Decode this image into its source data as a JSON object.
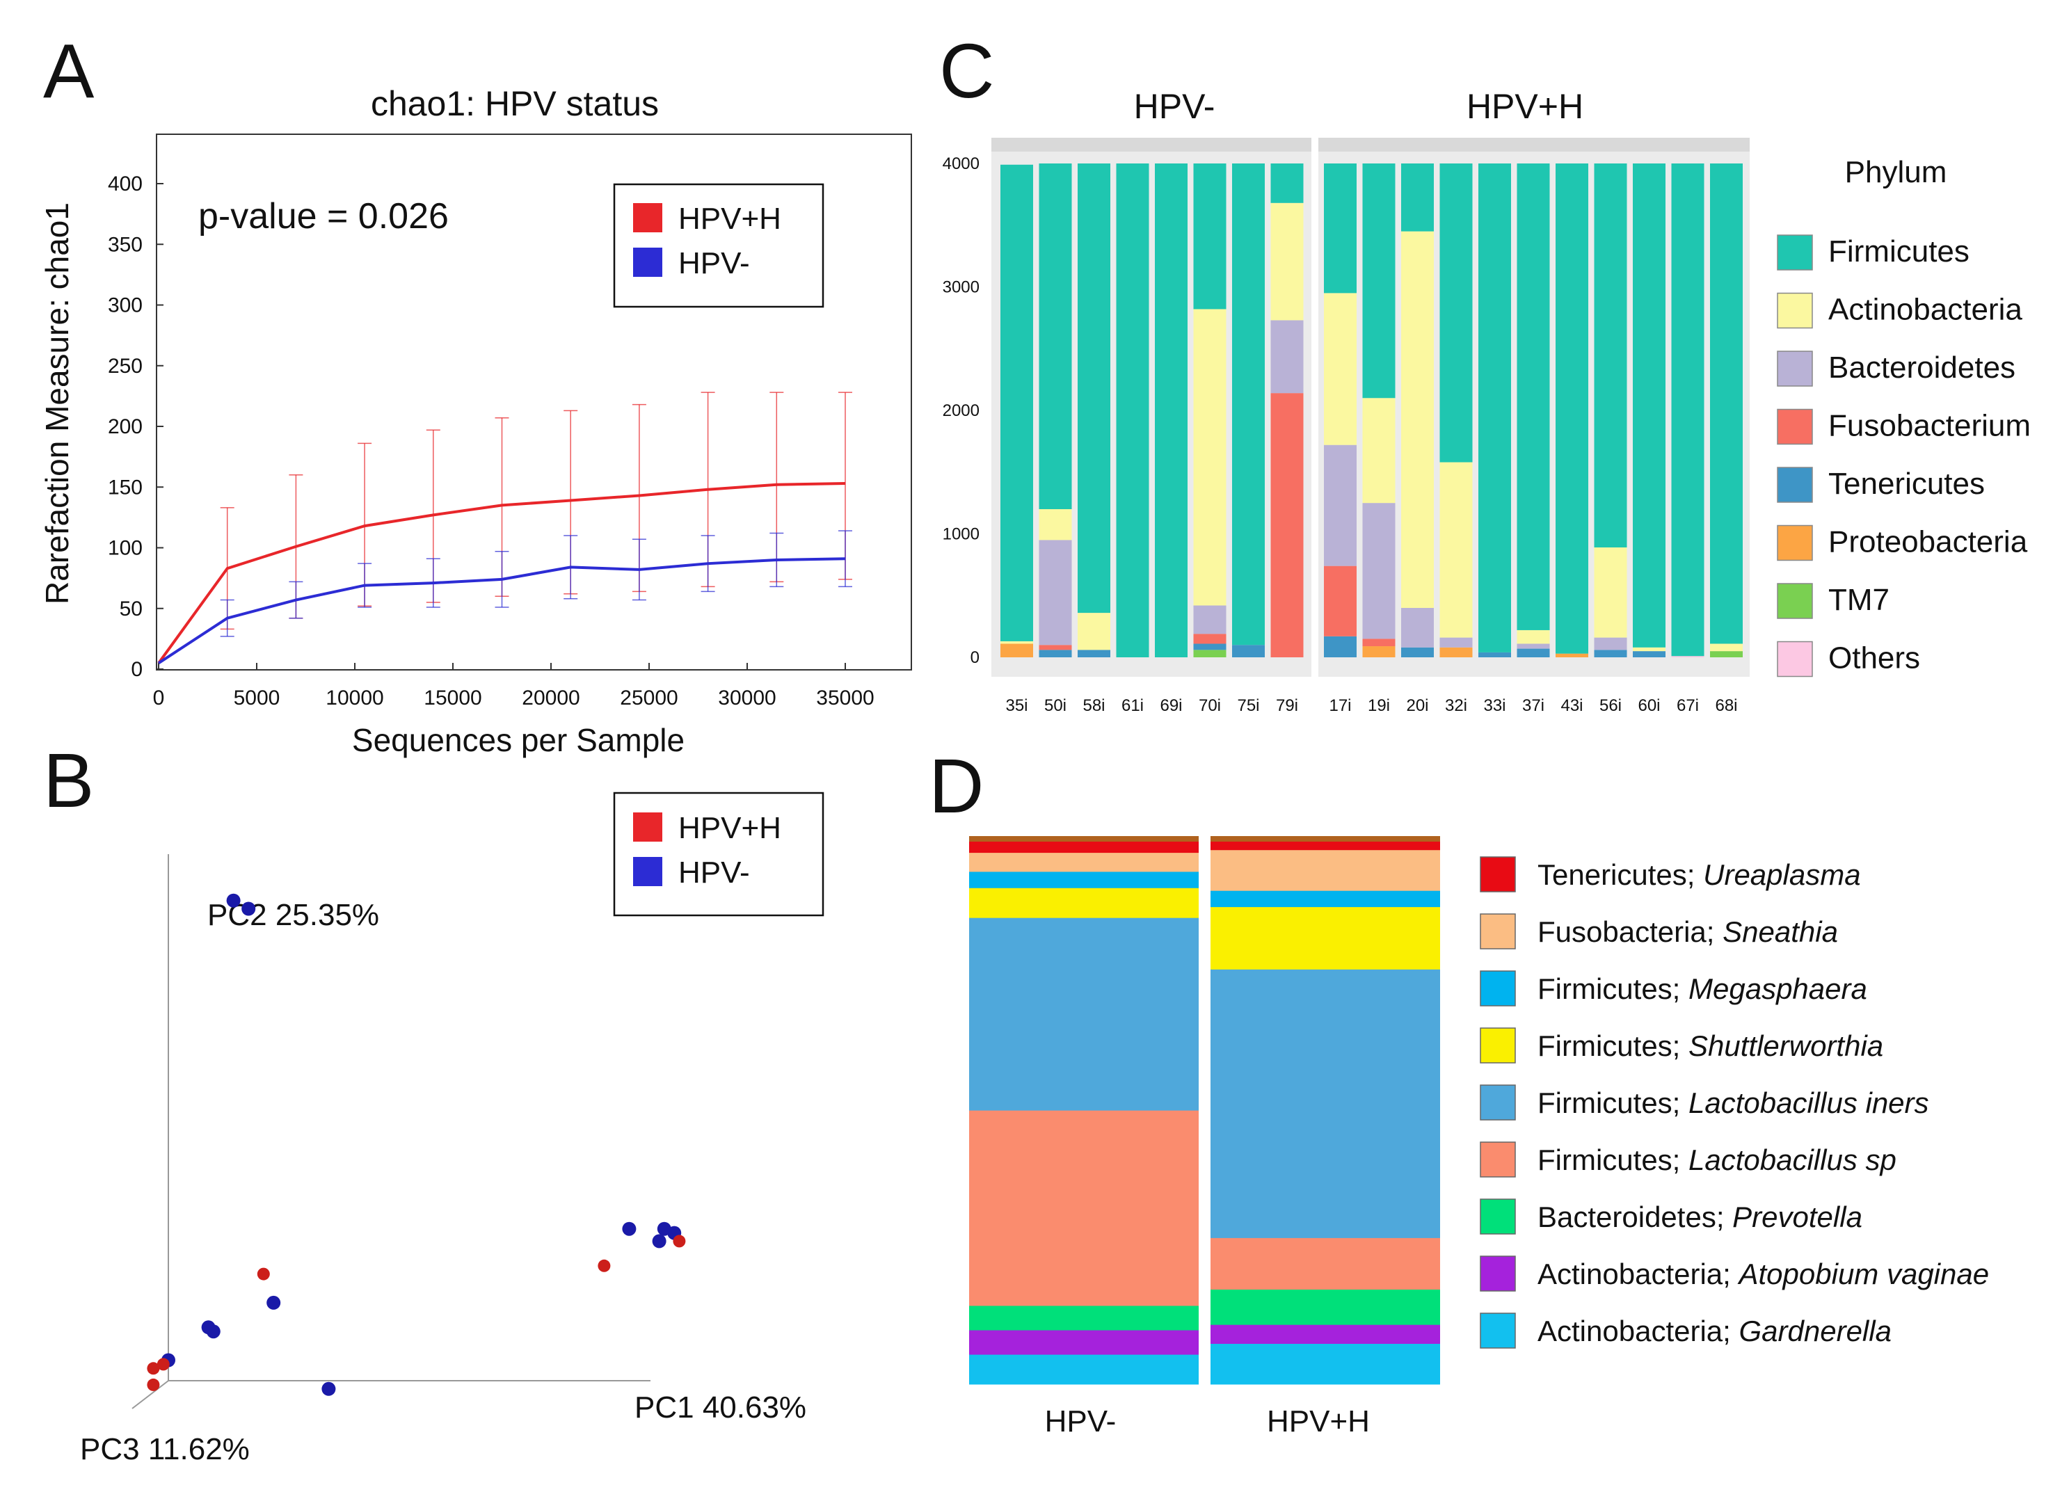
{
  "chart_data": [
    {
      "panel": "A",
      "type": "line",
      "title": "chao1: HPV status",
      "xlabel": "Sequences per Sample",
      "ylabel": "Rarefaction Measure: chao1",
      "annotation": "p-value = 0.026",
      "xlim": [
        0,
        38000
      ],
      "ylim": [
        0,
        420
      ],
      "xticks": [
        0,
        5000,
        10000,
        15000,
        20000,
        25000,
        30000,
        35000
      ],
      "yticks": [
        0,
        50,
        100,
        150,
        200,
        250,
        300,
        350,
        400
      ],
      "legend": [
        "HPV+H",
        "HPV-"
      ],
      "series": [
        {
          "name": "HPV+H",
          "color": "#e8262a",
          "x": [
            0,
            3500,
            7000,
            10500,
            14000,
            17500,
            21000,
            24500,
            28000,
            31500,
            35000
          ],
          "y": [
            5,
            83,
            101,
            118,
            127,
            135,
            139,
            143,
            148,
            152,
            153
          ],
          "err_upper": [
            5,
            133,
            160,
            186,
            197,
            207,
            213,
            218,
            228,
            228,
            228
          ],
          "err_lower": [
            5,
            33,
            42,
            52,
            55,
            60,
            62,
            64,
            68,
            72,
            74
          ]
        },
        {
          "name": "HPV-",
          "color": "#2c2cd4",
          "x": [
            0,
            3500,
            7000,
            10500,
            14000,
            17500,
            21000,
            24500,
            28000,
            31500,
            35000
          ],
          "y": [
            5,
            42,
            57,
            69,
            71,
            74,
            84,
            82,
            87,
            90,
            91
          ],
          "err_upper": [
            5,
            57,
            72,
            87,
            91,
            97,
            110,
            107,
            110,
            112,
            114
          ],
          "err_lower": [
            5,
            27,
            42,
            51,
            51,
            51,
            58,
            57,
            64,
            68,
            68
          ]
        }
      ]
    },
    {
      "panel": "B",
      "type": "scatter",
      "axis_labels": [
        "PC1 40.63%",
        "PC2 25.35%",
        "PC3 11.62%"
      ],
      "legend": [
        "HPV+H",
        "HPV-"
      ],
      "points": [
        {
          "group": "HPV-",
          "pc1": 0.13,
          "pc2": 1.17
        },
        {
          "group": "HPV-",
          "pc1": 0.16,
          "pc2": 1.15
        },
        {
          "group": "HPV-",
          "pc1": 0.92,
          "pc2": 0.37
        },
        {
          "group": "HPV-",
          "pc1": 0.99,
          "pc2": 0.37
        },
        {
          "group": "HPV-",
          "pc1": 1.01,
          "pc2": 0.36
        },
        {
          "group": "HPV-",
          "pc1": 0.98,
          "pc2": 0.34
        },
        {
          "group": "HPV-",
          "pc1": 0.21,
          "pc2": 0.19
        },
        {
          "group": "HPV-",
          "pc1": 0.08,
          "pc2": 0.13
        },
        {
          "group": "HPV-",
          "pc1": 0.09,
          "pc2": 0.12
        },
        {
          "group": "HPV-",
          "pc1": 0.0,
          "pc2": 0.05
        },
        {
          "group": "HPV-",
          "pc1": 0.32,
          "pc2": -0.02
        },
        {
          "group": "HPV+H",
          "pc1": 1.02,
          "pc2": 0.34
        },
        {
          "group": "HPV+H",
          "pc1": 0.87,
          "pc2": 0.28
        },
        {
          "group": "HPV+H",
          "pc1": 0.19,
          "pc2": 0.26
        },
        {
          "group": "HPV+H",
          "pc1": -0.01,
          "pc2": 0.04
        },
        {
          "group": "HPV+H",
          "pc1": -0.03,
          "pc2": 0.03
        },
        {
          "group": "HPV+H",
          "pc1": -0.03,
          "pc2": -0.01
        }
      ]
    },
    {
      "panel": "C",
      "type": "bar",
      "stacked": true,
      "legend_title": "Phylum",
      "ylim": [
        0,
        4000
      ],
      "yticks": [
        0,
        1000,
        2000,
        3000,
        4000
      ],
      "ytick_labels": [
        "0",
        "1000",
        "2000",
        "3000",
        "4000"
      ],
      "phyla": [
        {
          "name": "Firmicutes",
          "color": "#1fc6b0"
        },
        {
          "name": "Actinobacteria",
          "color": "#fbf8a0"
        },
        {
          "name": "Bacteroidetes",
          "color": "#b9b2d6"
        },
        {
          "name": "Fusobacterium",
          "color": "#f76f62"
        },
        {
          "name": "Tenericutes",
          "color": "#3e95c6"
        },
        {
          "name": "Proteobacteria",
          "color": "#fca544"
        },
        {
          "name": "TM7",
          "color": "#7ad051"
        },
        {
          "name": "Others",
          "color": "#fcc8e3"
        }
      ],
      "facets": [
        {
          "label": "HPV-",
          "samples": [
            {
              "id": "35i",
              "values": {
                "Firmicutes": 3860,
                "Proteobacteria": 110,
                "Actinobacteria": 20
              }
            },
            {
              "id": "50i",
              "values": {
                "Firmicutes": 2800,
                "Actinobacteria": 250,
                "Bacteroidetes": 850,
                "Fusobacterium": 40,
                "Tenericutes": 60
              }
            },
            {
              "id": "58i",
              "values": {
                "Firmicutes": 3640,
                "Actinobacteria": 300,
                "Tenericutes": 60
              }
            },
            {
              "id": "61i",
              "values": {
                "Firmicutes": 4000
              }
            },
            {
              "id": "69i",
              "values": {
                "Firmicutes": 4000
              }
            },
            {
              "id": "70i",
              "values": {
                "Firmicutes": 1180,
                "Actinobacteria": 2400,
                "Bacteroidetes": 230,
                "Fusobacterium": 80,
                "TM7": 60,
                "Tenericutes": 50
              }
            },
            {
              "id": "75i",
              "values": {
                "Firmicutes": 3900,
                "Tenericutes": 100
              }
            },
            {
              "id": "79i",
              "values": {
                "Firmicutes": 320,
                "Actinobacteria": 950,
                "Bacteroidetes": 590,
                "Fusobacterium": 2140
              }
            }
          ]
        },
        {
          "label": "HPV+H",
          "samples": [
            {
              "id": "17i",
              "values": {
                "Firmicutes": 1050,
                "Actinobacteria": 1230,
                "Bacteroidetes": 980,
                "Fusobacterium": 570,
                "Tenericutes": 170
              }
            },
            {
              "id": "19i",
              "values": {
                "Firmicutes": 1900,
                "Actinobacteria": 850,
                "Bacteroidetes": 1100,
                "Fusobacterium": 60,
                "Proteobacteria": 90
              }
            },
            {
              "id": "20i",
              "values": {
                "Firmicutes": 550,
                "Actinobacteria": 3050,
                "Bacteroidetes": 320,
                "Tenericutes": 80
              }
            },
            {
              "id": "32i",
              "values": {
                "Firmicutes": 2420,
                "Actinobacteria": 1420,
                "Bacteroidetes": 80,
                "Proteobacteria": 80
              }
            },
            {
              "id": "33i",
              "values": {
                "Firmicutes": 3960,
                "Tenericutes": 40
              }
            },
            {
              "id": "37i",
              "values": {
                "Firmicutes": 3780,
                "Actinobacteria": 110,
                "Tenericutes": 70,
                "Bacteroidetes": 40
              }
            },
            {
              "id": "43i",
              "values": {
                "Firmicutes": 3970,
                "Proteobacteria": 30
              }
            },
            {
              "id": "56i",
              "values": {
                "Firmicutes": 3110,
                "Actinobacteria": 730,
                "Bacteroidetes": 100,
                "Tenericutes": 60
              }
            },
            {
              "id": "60i",
              "values": {
                "Firmicutes": 3920,
                "Tenericutes": 50,
                "Actinobacteria": 30
              }
            },
            {
              "id": "67i",
              "values": {
                "Firmicutes": 3990,
                "Others": 10
              }
            },
            {
              "id": "68i",
              "values": {
                "Firmicutes": 3890,
                "Actinobacteria": 60,
                "TM7": 50
              }
            }
          ]
        }
      ]
    },
    {
      "panel": "D",
      "type": "bar",
      "stacked": true,
      "normalized": true,
      "categories": [
        "HPV-",
        "HPV+H"
      ],
      "taxa": [
        {
          "phylum": "Tenericutes",
          "genus": "Ureaplasma",
          "color": "#e80b14"
        },
        {
          "phylum": "Fusobacteria",
          "genus": "Sneathia",
          "color": "#fbbd83"
        },
        {
          "phylum": "Firmicutes",
          "genus": "Megasphaera",
          "color": "#00b3ef"
        },
        {
          "phylum": "Firmicutes",
          "genus": "Shuttlerworthia",
          "color": "#faf000"
        },
        {
          "phylum": "Firmicutes",
          "genus": "Lactobacillus iners",
          "color": "#4fa8db"
        },
        {
          "phylum": "Firmicutes",
          "genus": "Lactobacillus sp",
          "color": "#fa8c6e"
        },
        {
          "phylum": "Bacteroidetes",
          "genus": "Prevotella",
          "color": "#00e07a"
        },
        {
          "phylum": "Actinobacteria",
          "genus": "Atopobium vaginae",
          "color": "#a522dc"
        },
        {
          "phylum": "Actinobacteria",
          "genus": "Gardnerella",
          "color": "#12c0ef"
        }
      ],
      "stacks": [
        {
          "category": "HPV-",
          "segments": [
            {
              "genus": "Gardnerella",
              "value": 0.055
            },
            {
              "genus": "Atopobium vaginae",
              "value": 0.045
            },
            {
              "genus": "Prevotella",
              "value": 0.045
            },
            {
              "genus": "Lactobacillus sp",
              "value": 0.36
            },
            {
              "genus": "Lactobacillus iners",
              "value": 0.355
            },
            {
              "genus": "Shuttlerworthia",
              "value": 0.055
            },
            {
              "genus": "Megasphaera",
              "value": 0.03
            },
            {
              "genus": "Sneathia",
              "value": 0.035
            },
            {
              "genus": "Ureaplasma",
              "value": 0.02
            }
          ]
        },
        {
          "category": "HPV+H",
          "segments": [
            {
              "genus": "Gardnerella",
              "value": 0.075
            },
            {
              "genus": "Atopobium vaginae",
              "value": 0.035
            },
            {
              "genus": "Prevotella",
              "value": 0.065
            },
            {
              "genus": "Lactobacillus sp",
              "value": 0.095
            },
            {
              "genus": "Lactobacillus iners",
              "value": 0.495
            },
            {
              "genus": "Shuttlerworthia",
              "value": 0.115
            },
            {
              "genus": "Megasphaera",
              "value": 0.03
            },
            {
              "genus": "Sneathia",
              "value": 0.075
            },
            {
              "genus": "Ureaplasma",
              "value": 0.015
            }
          ]
        }
      ]
    }
  ],
  "panel_labels": {
    "a": "A",
    "b": "B",
    "c": "C",
    "d": "D"
  },
  "panel_a": {
    "title": "chao1: HPV status",
    "pvalue": "p-value = 0.026",
    "xlabel": "Sequences per Sample",
    "ylabel": "Rarefaction Measure: chao1",
    "legend": [
      "HPV+H",
      "HPV-"
    ]
  },
  "panel_b": {
    "pc1": "PC1 40.63%",
    "pc2": "PC2 25.35%",
    "pc3": "PC3 11.62%",
    "legend": [
      "HPV+H",
      "HPV-"
    ]
  },
  "panel_c": {
    "legend_title": "Phylum",
    "facet_labels": [
      "HPV-",
      "HPV+H"
    ]
  },
  "panel_d": {
    "categories": [
      "HPV-",
      "HPV+H"
    ]
  },
  "colors": {
    "red": "#e8262a",
    "blue": "#2c2cd4",
    "pca_red": "#cc1f1a",
    "pca_blue": "#1a1aa8"
  }
}
